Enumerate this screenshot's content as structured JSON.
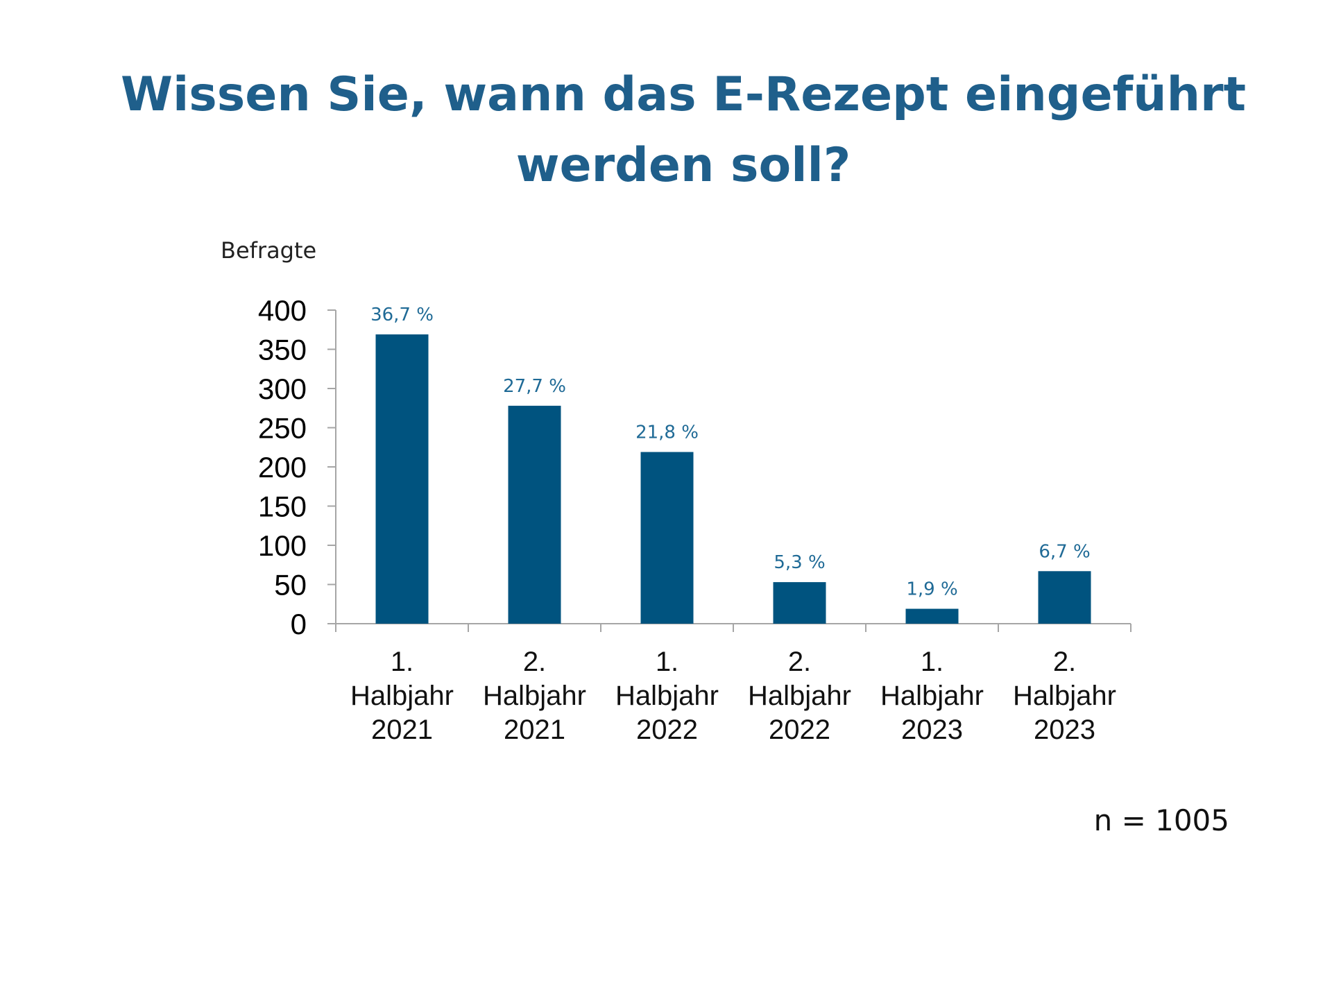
{
  "title_lines": [
    "Wissen Sie, wann das E-Rezept eingeführt",
    "werden soll?"
  ],
  "note": "n = 1005",
  "chart_data": {
    "type": "bar",
    "title": "Wissen Sie, wann das E-Rezept eingeführt werden soll?",
    "ylabel": "Befragte",
    "xlabel": "",
    "ylim": [
      0,
      400
    ],
    "yticks": [
      0,
      50,
      100,
      150,
      200,
      250,
      300,
      350,
      400
    ],
    "grid": false,
    "categories": [
      [
        "1.",
        "Halbjahr",
        "2021"
      ],
      [
        "2.",
        "Halbjahr",
        "2021"
      ],
      [
        "1.",
        "Halbjahr",
        "2022"
      ],
      [
        "2.",
        "Halbjahr",
        "2022"
      ],
      [
        "1.",
        "Halbjahr",
        "2023"
      ],
      [
        "2.",
        "Halbjahr",
        "2023"
      ]
    ],
    "values": [
      369,
      278,
      219,
      53,
      19,
      67
    ],
    "data_labels": [
      "36,7 %",
      "27,7 %",
      "21,8 %",
      "5,3 %",
      "1,9 %",
      "6,7 %"
    ],
    "colors": {
      "bar": "#00537f",
      "label": "#1f6a96",
      "axis": "#a6a6a6"
    }
  }
}
